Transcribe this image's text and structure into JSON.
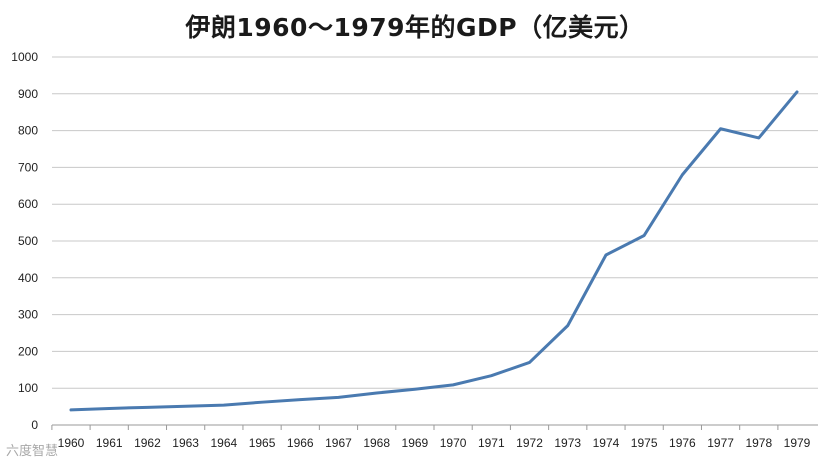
{
  "chart_data": {
    "type": "line",
    "title": "伊朗1960～1979年的GDP（亿美元）",
    "xlabel": "",
    "ylabel": "",
    "categories": [
      "1960",
      "1961",
      "1962",
      "1963",
      "1964",
      "1965",
      "1966",
      "1967",
      "1968",
      "1969",
      "1970",
      "1971",
      "1972",
      "1973",
      "1974",
      "1975",
      "1976",
      "1977",
      "1978",
      "1979"
    ],
    "series": [
      {
        "values": [
          41,
          45,
          48,
          51,
          54,
          62,
          69,
          75,
          87,
          97,
          109,
          134,
          170,
          270,
          462,
          515,
          680,
          805,
          780,
          905
        ]
      }
    ],
    "ylim": [
      0,
      1000
    ],
    "yticks": [
      0,
      100,
      200,
      300,
      400,
      500,
      600,
      700,
      800,
      900,
      1000
    ],
    "grid": true,
    "legend": "none",
    "colors": {
      "series": "#4a7ab0",
      "grid": "#c8c8c8"
    }
  },
  "watermark": "六度智慧"
}
